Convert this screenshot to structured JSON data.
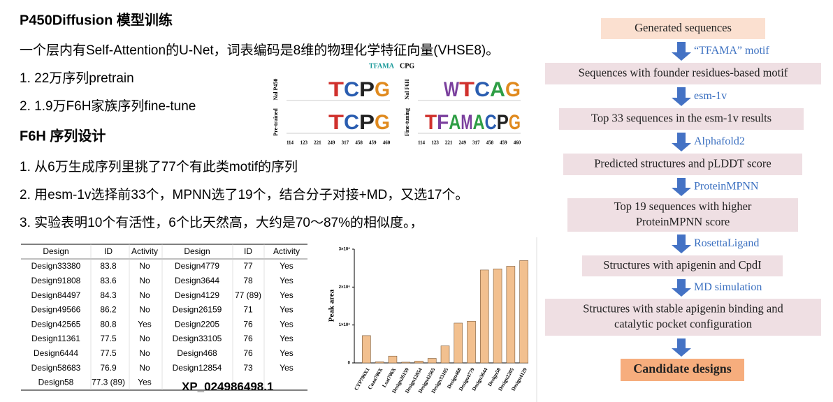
{
  "slide": {
    "heading1": "P450Diffusion 模型训练",
    "intro": "一个层内有Self-Attention的U-Net，词表编码是8维的物理化学特征向量(VHSE8)。",
    "training": [
      "1.  22万序列pretrain",
      "2.  1.9万F6H家族序列fine-tune"
    ],
    "heading2": "F6H 序列设计",
    "design_steps": [
      "1.  从6万生成序列里挑了77个有此类motif的序列",
      "2.  用esm-1v选择前33个，MPNN选了19个，结合分子对接+MD，又选17个。",
      "3.  实验表明10个有活性，6个比天然高，大约是70～87%的相似度。，"
    ],
    "table": {
      "header": [
        "Design",
        "ID",
        "Activity",
        "Design",
        "ID",
        "Activity"
      ],
      "rows": [
        [
          "Design33380",
          "83.8",
          "No",
          "Design4779",
          "77",
          "Yes"
        ],
        [
          "Design91808",
          "83.6",
          "No",
          "Design3644",
          "78",
          "Yes"
        ],
        [
          "Design84497",
          "84.3",
          "No",
          "Design4129",
          "77 (89)",
          "Yes"
        ],
        [
          "Design49566",
          "86.2",
          "No",
          "Design26159",
          "71",
          "Yes"
        ],
        [
          "Design42565",
          "80.8",
          "Yes",
          "Design2205",
          "76",
          "Yes"
        ],
        [
          "Design11361",
          "77.5",
          "No",
          "Design33105",
          "76",
          "Yes"
        ],
        [
          "Design6444",
          "77.5",
          "No",
          "Design468",
          "76",
          "Yes"
        ],
        [
          "Design58683",
          "76.9",
          "No",
          "Design12854",
          "73",
          "Yes"
        ],
        [
          "Design58",
          "77.3 (89)",
          "Yes"
        ]
      ]
    },
    "accession": "XP_024986498.1",
    "logos": {
      "header": [
        "TFAMA",
        "CPG"
      ],
      "panels": [
        {
          "rows": [
            {
              "label": "Nal P450",
              "letters": [
                "T",
                "C",
                "P",
                "G"
              ]
            },
            {
              "label": "Pre-trained",
              "letters": [
                "T",
                "C",
                "P",
                "G"
              ]
            }
          ]
        },
        {
          "rows": [
            {
              "label": "Nal F6H",
              "letters": [
                "W",
                "T",
                "C",
                "A",
                "G"
              ]
            },
            {
              "label": "Fine-tuning",
              "letters": [
                "T",
                "F",
                "A",
                "M",
                "A",
                "C",
                "P",
                "G"
              ]
            }
          ]
        }
      ],
      "positions": [
        "114",
        "123",
        "221",
        "249",
        "317",
        "458",
        "459",
        "460"
      ]
    },
    "bar_chart": {
      "type": "bar",
      "ylabel": "Peak area",
      "categories": [
        "CYP706X1",
        "Cuan706X",
        "Lsat706X",
        "Design26159",
        "Design12854",
        "Design42565",
        "Design33105",
        "Design468",
        "Design4779",
        "Design3644",
        "Design58",
        "Design2205",
        "Design4129"
      ],
      "values": [
        720000,
        30000,
        180000,
        20000,
        50000,
        120000,
        450000,
        1050000,
        1100000,
        2450000,
        2480000,
        2550000,
        2700000
      ],
      "color": "#f2c08f",
      "ylim": [
        0,
        3000000
      ],
      "yticks": [
        0,
        {
          "value": 1000000,
          "label": "1×10⁶"
        },
        {
          "value": 2000000,
          "label": "2×10⁶"
        },
        {
          "value": 3000000,
          "label": "3×10⁶"
        }
      ]
    },
    "flow": {
      "steps": [
        {
          "lines": [
            "Generated sequences"
          ]
        },
        {
          "lines": [
            "Sequences with founder residues-based motif"
          ]
        },
        {
          "lines": [
            "Top 33 sequences in the esm-1v results"
          ]
        },
        {
          "lines": [
            "Predicted structures and pLDDT score"
          ]
        },
        {
          "lines": [
            "Top 19 sequences with higher",
            "ProteinMPNN score"
          ]
        },
        {
          "lines": [
            "Structures with apigenin and CpdI"
          ]
        },
        {
          "lines": [
            "Structures with stable apigenin binding and",
            "catalytic pocket configuration"
          ]
        },
        {
          "lines": [
            "Candidate designs"
          ]
        }
      ],
      "tools": [
        "“TFAMA” motif",
        "esm-1v",
        "Alphafold2",
        "ProteinMPNN",
        "RosettaLigand",
        "MD simulation"
      ]
    }
  }
}
